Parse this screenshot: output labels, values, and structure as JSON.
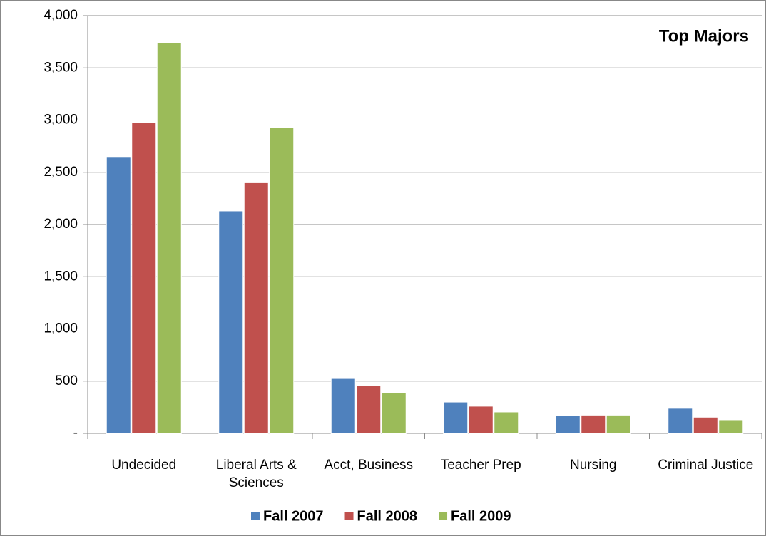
{
  "chart_data": {
    "type": "bar",
    "title": "Top Majors",
    "categories": [
      "Undecided",
      "Liberal Arts & Sciences",
      "Acct, Business",
      "Teacher Prep",
      "Nursing",
      "Criminal Justice"
    ],
    "series": [
      {
        "name": "Fall 2007",
        "color": "#4f81bd",
        "values": [
          2650,
          2130,
          525,
          300,
          170,
          240
        ]
      },
      {
        "name": "Fall 2008",
        "color": "#c0504d",
        "values": [
          2975,
          2400,
          460,
          260,
          175,
          155
        ]
      },
      {
        "name": "Fall 2009",
        "color": "#9bbb59",
        "values": [
          3740,
          2925,
          390,
          205,
          175,
          130
        ]
      }
    ],
    "ylim": [
      0,
      4000
    ],
    "yticks": [
      {
        "value": 0,
        "label": "-"
      },
      500,
      {
        "value": 1000,
        "label": "1,000"
      },
      {
        "value": 1500,
        "label": "1,500"
      },
      {
        "value": 2000,
        "label": "2,000"
      },
      {
        "value": 2500,
        "label": "2,500"
      },
      {
        "value": 3000,
        "label": "3,000"
      },
      {
        "value": 3500,
        "label": "3,500"
      },
      {
        "value": 4000,
        "label": "4,000"
      }
    ],
    "grid": true,
    "legend": "bottom"
  }
}
